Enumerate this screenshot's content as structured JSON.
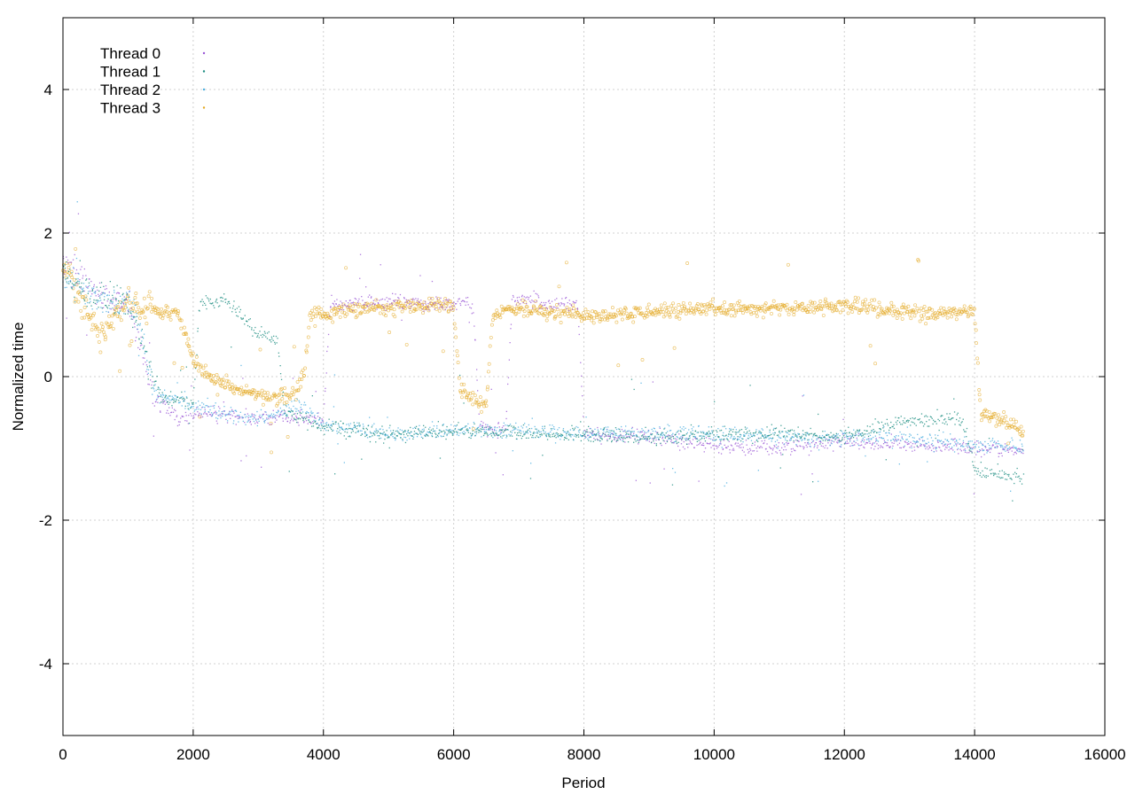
{
  "chart_data": {
    "type": "scatter",
    "title": "",
    "xlabel": "Period",
    "ylabel": "Normalized time",
    "xlim": [
      0,
      16000
    ],
    "ylim": [
      -5,
      5
    ],
    "xticks": [
      0,
      2000,
      4000,
      6000,
      8000,
      10000,
      12000,
      14000,
      16000
    ],
    "yticks": [
      -4,
      -2,
      0,
      2,
      4
    ],
    "grid": true,
    "legend_position": "top-left",
    "x_extent": [
      0,
      14750
    ],
    "series": [
      {
        "name": "Thread 0",
        "color": "#9b59d6",
        "marker": "dot",
        "trend": [
          [
            0,
            1.6
          ],
          [
            300,
            1.4
          ],
          [
            600,
            1.1
          ],
          [
            1000,
            1.0
          ],
          [
            1400,
            -0.3
          ],
          [
            1800,
            -0.6
          ],
          [
            2200,
            -0.5
          ],
          [
            2600,
            -0.55
          ],
          [
            3000,
            -0.6
          ],
          [
            3400,
            -0.55
          ],
          [
            3800,
            -0.6
          ],
          [
            4000,
            -0.6
          ],
          [
            4100,
            1.0
          ],
          [
            5000,
            1.05
          ],
          [
            5900,
            1.0
          ],
          [
            6000,
            1.0
          ],
          [
            6050,
            1.05
          ],
          [
            6300,
            1.0
          ],
          [
            6400,
            -0.7
          ],
          [
            6800,
            -0.75
          ],
          [
            6900,
            1.1
          ],
          [
            7500,
            1.0
          ],
          [
            7900,
            1.05
          ],
          [
            8000,
            -0.8
          ],
          [
            9000,
            -0.85
          ],
          [
            10000,
            -0.95
          ],
          [
            11000,
            -1.0
          ],
          [
            12000,
            -0.9
          ],
          [
            13000,
            -0.95
          ],
          [
            14000,
            -1.0
          ],
          [
            14750,
            -1.05
          ]
        ]
      },
      {
        "name": "Thread 1",
        "color": "#1a8c80",
        "marker": "dot",
        "trend": [
          [
            0,
            1.5
          ],
          [
            400,
            1.1
          ],
          [
            1000,
            1.05
          ],
          [
            1300,
            0.2
          ],
          [
            1500,
            -0.3
          ],
          [
            2000,
            -0.35
          ],
          [
            2100,
            1.0
          ],
          [
            2500,
            1.05
          ],
          [
            3000,
            0.6
          ],
          [
            3300,
            0.5
          ],
          [
            3400,
            -0.5
          ],
          [
            4000,
            -0.7
          ],
          [
            5000,
            -0.8
          ],
          [
            6000,
            -0.75
          ],
          [
            7000,
            -0.8
          ],
          [
            8000,
            -0.8
          ],
          [
            9000,
            -0.85
          ],
          [
            10000,
            -0.8
          ],
          [
            11000,
            -0.8
          ],
          [
            12000,
            -0.85
          ],
          [
            13000,
            -0.6
          ],
          [
            13800,
            -0.6
          ],
          [
            14000,
            -1.3
          ],
          [
            14750,
            -1.4
          ]
        ]
      },
      {
        "name": "Thread 2",
        "color": "#4aaee0",
        "marker": "dot",
        "trend": [
          [
            0,
            1.4
          ],
          [
            500,
            1.1
          ],
          [
            1100,
            1.0
          ],
          [
            1400,
            -0.2
          ],
          [
            2000,
            -0.4
          ],
          [
            3000,
            -0.6
          ],
          [
            3600,
            -0.4
          ],
          [
            4000,
            -0.65
          ],
          [
            5000,
            -0.8
          ],
          [
            6000,
            -0.75
          ],
          [
            7000,
            -0.75
          ],
          [
            8000,
            -0.8
          ],
          [
            9000,
            -0.8
          ],
          [
            10000,
            -0.8
          ],
          [
            11000,
            -0.85
          ],
          [
            12000,
            -0.85
          ],
          [
            13000,
            -0.85
          ],
          [
            14000,
            -0.95
          ],
          [
            14750,
            -1.0
          ]
        ]
      },
      {
        "name": "Thread 3",
        "color": "#e3a820",
        "marker": "circle",
        "trend": [
          [
            0,
            1.6
          ],
          [
            300,
            1.0
          ],
          [
            600,
            0.6
          ],
          [
            1000,
            1.0
          ],
          [
            1800,
            0.85
          ],
          [
            2000,
            0.2
          ],
          [
            2500,
            -0.1
          ],
          [
            3000,
            -0.25
          ],
          [
            3500,
            -0.3
          ],
          [
            3700,
            0.0
          ],
          [
            3800,
            0.85
          ],
          [
            4500,
            0.95
          ],
          [
            5500,
            1.0
          ],
          [
            6000,
            1.0
          ],
          [
            6100,
            -0.2
          ],
          [
            6500,
            -0.4
          ],
          [
            6600,
            0.85
          ],
          [
            7000,
            0.95
          ],
          [
            8000,
            0.85
          ],
          [
            9000,
            0.9
          ],
          [
            10000,
            0.95
          ],
          [
            11000,
            0.95
          ],
          [
            12000,
            1.0
          ],
          [
            13000,
            0.9
          ],
          [
            14000,
            0.9
          ],
          [
            14100,
            -0.5
          ],
          [
            14750,
            -0.75
          ]
        ]
      }
    ]
  }
}
